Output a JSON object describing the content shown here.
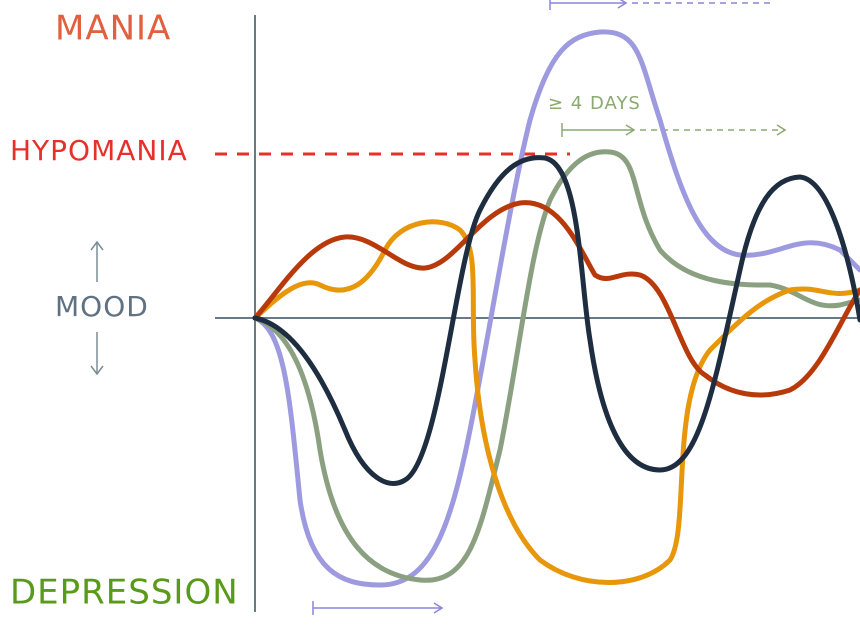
{
  "labels": {
    "mania": "MANIA",
    "hypomania": "HYPOMANIA",
    "mood": "MOOD",
    "depression": "DEPRESSION",
    "hypomania_duration": "≥ 4 DAYS"
  }
}
